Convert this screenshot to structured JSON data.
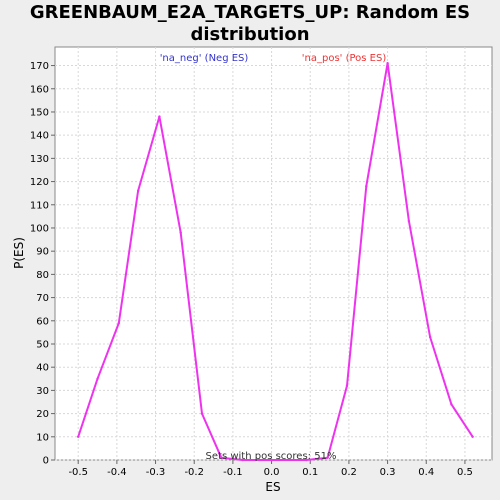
{
  "chart_data": {
    "type": "line",
    "title": "GREENBAUM_E2A_TARGETS_UP: Random ES distribution",
    "xlabel": "ES",
    "ylabel": "P(ES)",
    "xlim": [
      -0.56,
      0.57
    ],
    "ylim": [
      0,
      178
    ],
    "x_ticks": [
      "-0.5",
      "-0.4",
      "-0.3",
      "-0.2",
      "-0.1",
      "0.0",
      "0.1",
      "0.2",
      "0.3",
      "0.4",
      "0.5"
    ],
    "y_ticks": [
      "0",
      "10",
      "20",
      "30",
      "40",
      "50",
      "60",
      "70",
      "80",
      "90",
      "100",
      "110",
      "120",
      "130",
      "140",
      "150",
      "160",
      "170"
    ],
    "grid": true,
    "series": [
      {
        "color": "#ee33ee",
        "x": [
          -0.5,
          -0.45,
          -0.395,
          -0.345,
          -0.29,
          -0.235,
          -0.18,
          -0.13,
          -0.075,
          0.0,
          0.09,
          0.145,
          0.195,
          0.245,
          0.3,
          0.355,
          0.41,
          0.465,
          0.52
        ],
        "y": [
          10,
          35,
          59,
          116,
          148,
          98,
          20,
          1,
          0,
          0,
          0,
          1,
          32,
          118,
          171,
          103,
          53,
          24,
          10
        ]
      }
    ],
    "annotations": {
      "neg_label": "'na_neg' (Neg ES)",
      "neg_color": "#3333cc",
      "pos_label": "'na_pos' (Pos ES)",
      "pos_color": "#ee3333",
      "footer": "Sets with pos scores: 51%"
    }
  }
}
